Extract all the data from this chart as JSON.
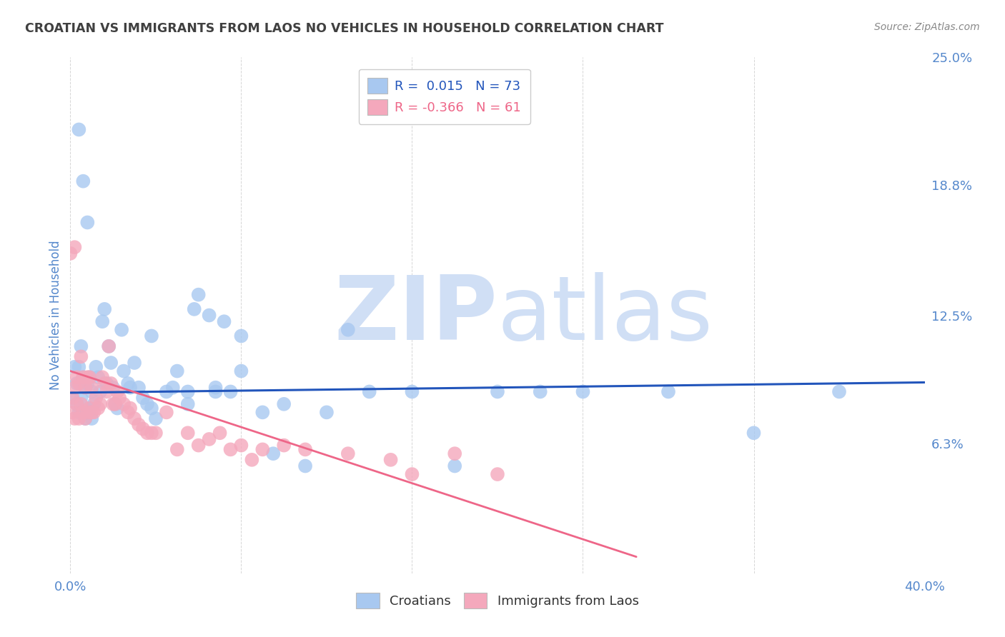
{
  "title": "CROATIAN VS IMMIGRANTS FROM LAOS NO VEHICLES IN HOUSEHOLD CORRELATION CHART",
  "source": "Source: ZipAtlas.com",
  "ylabel": "No Vehicles in Household",
  "xlim": [
    0.0,
    0.4
  ],
  "ylim": [
    0.0,
    0.25
  ],
  "blue_R": 0.015,
  "blue_N": 73,
  "pink_R": -0.366,
  "pink_N": 61,
  "blue_color": "#A8C8F0",
  "pink_color": "#F4A8BC",
  "blue_line_color": "#2255BB",
  "pink_line_color": "#EE6688",
  "watermark_zip": "ZIP",
  "watermark_atlas": "atlas",
  "watermark_color": "#D0DFF5",
  "background_color": "#FFFFFF",
  "grid_color": "#CCCCCC",
  "title_color": "#404040",
  "axis_label_color": "#5588CC",
  "ytick_right_labels": [
    "25.0%",
    "18.8%",
    "12.5%",
    "6.3%"
  ],
  "ytick_right_values": [
    0.25,
    0.188,
    0.125,
    0.063
  ],
  "blue_scatter_x": [
    0.001,
    0.002,
    0.003,
    0.003,
    0.004,
    0.004,
    0.005,
    0.005,
    0.006,
    0.006,
    0.007,
    0.007,
    0.008,
    0.008,
    0.009,
    0.009,
    0.01,
    0.01,
    0.011,
    0.012,
    0.013,
    0.014,
    0.015,
    0.016,
    0.017,
    0.018,
    0.019,
    0.02,
    0.021,
    0.022,
    0.024,
    0.025,
    0.027,
    0.028,
    0.03,
    0.032,
    0.034,
    0.036,
    0.038,
    0.04,
    0.045,
    0.048,
    0.05,
    0.055,
    0.058,
    0.06,
    0.065,
    0.068,
    0.072,
    0.075,
    0.08,
    0.09,
    0.095,
    0.1,
    0.11,
    0.12,
    0.13,
    0.14,
    0.16,
    0.18,
    0.2,
    0.22,
    0.24,
    0.28,
    0.32,
    0.36,
    0.038,
    0.055,
    0.068,
    0.08,
    0.004,
    0.006,
    0.008
  ],
  "blue_scatter_y": [
    0.085,
    0.1,
    0.092,
    0.082,
    0.1,
    0.078,
    0.11,
    0.085,
    0.095,
    0.078,
    0.09,
    0.075,
    0.092,
    0.078,
    0.095,
    0.08,
    0.088,
    0.075,
    0.082,
    0.1,
    0.095,
    0.088,
    0.122,
    0.128,
    0.092,
    0.11,
    0.102,
    0.09,
    0.082,
    0.08,
    0.118,
    0.098,
    0.092,
    0.09,
    0.102,
    0.09,
    0.085,
    0.082,
    0.08,
    0.075,
    0.088,
    0.09,
    0.098,
    0.088,
    0.128,
    0.135,
    0.125,
    0.09,
    0.122,
    0.088,
    0.098,
    0.078,
    0.058,
    0.082,
    0.052,
    0.078,
    0.118,
    0.088,
    0.088,
    0.052,
    0.088,
    0.088,
    0.088,
    0.088,
    0.068,
    0.088,
    0.115,
    0.082,
    0.088,
    0.115,
    0.215,
    0.19,
    0.17
  ],
  "pink_scatter_x": [
    0.0,
    0.001,
    0.001,
    0.002,
    0.002,
    0.003,
    0.003,
    0.004,
    0.004,
    0.005,
    0.005,
    0.006,
    0.006,
    0.007,
    0.007,
    0.008,
    0.008,
    0.009,
    0.009,
    0.01,
    0.01,
    0.011,
    0.012,
    0.013,
    0.014,
    0.015,
    0.016,
    0.017,
    0.018,
    0.019,
    0.02,
    0.021,
    0.022,
    0.023,
    0.025,
    0.027,
    0.028,
    0.03,
    0.032,
    0.034,
    0.036,
    0.038,
    0.04,
    0.045,
    0.05,
    0.055,
    0.06,
    0.065,
    0.07,
    0.075,
    0.08,
    0.085,
    0.09,
    0.1,
    0.11,
    0.13,
    0.15,
    0.16,
    0.18,
    0.2,
    0.002
  ],
  "pink_scatter_y": [
    0.155,
    0.085,
    0.078,
    0.09,
    0.075,
    0.095,
    0.082,
    0.092,
    0.075,
    0.105,
    0.082,
    0.095,
    0.078,
    0.09,
    0.075,
    0.095,
    0.078,
    0.095,
    0.08,
    0.09,
    0.078,
    0.078,
    0.085,
    0.08,
    0.082,
    0.095,
    0.092,
    0.088,
    0.11,
    0.092,
    0.082,
    0.082,
    0.088,
    0.085,
    0.082,
    0.078,
    0.08,
    0.075,
    0.072,
    0.07,
    0.068,
    0.068,
    0.068,
    0.078,
    0.06,
    0.068,
    0.062,
    0.065,
    0.068,
    0.06,
    0.062,
    0.055,
    0.06,
    0.062,
    0.06,
    0.058,
    0.055,
    0.048,
    0.058,
    0.048,
    0.158
  ],
  "blue_line_x0": 0.0,
  "blue_line_x1": 0.4,
  "blue_line_y0": 0.0875,
  "blue_line_y1": 0.0925,
  "pink_line_x0": 0.0,
  "pink_line_x1": 0.265,
  "pink_line_y0": 0.098,
  "pink_line_y1": 0.008
}
